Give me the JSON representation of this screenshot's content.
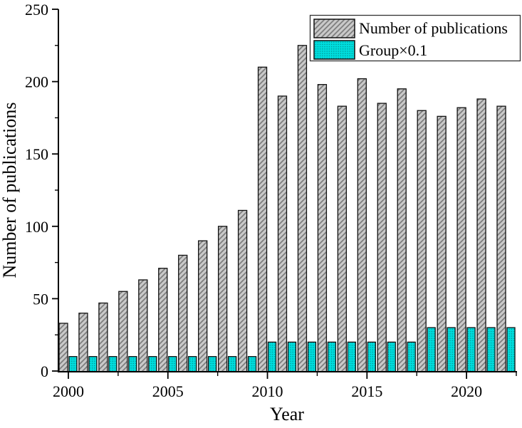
{
  "figure": {
    "background": "#ffffff"
  },
  "chart_data": {
    "type": "bar",
    "title": "",
    "xlabel": "Year",
    "ylabel": "Number of publications",
    "categories": [
      2000,
      2001,
      2002,
      2003,
      2004,
      2005,
      2006,
      2007,
      2008,
      2009,
      2010,
      2011,
      2012,
      2013,
      2014,
      2015,
      2016,
      2017,
      2018,
      2019,
      2020,
      2021,
      2022
    ],
    "series": [
      {
        "name": "Number of publications",
        "values": [
          33,
          40,
          47,
          55,
          63,
          71,
          80,
          90,
          100,
          111,
          210,
          190,
          225,
          198,
          183,
          202,
          185,
          195,
          180,
          176,
          182,
          188,
          183
        ],
        "fill": "#c9c9c9",
        "pattern": "diagonal-hatch",
        "pattern_color": "#7d7d7d",
        "stroke": "#111111"
      },
      {
        "name": "Group×0.1",
        "values": [
          10,
          10,
          10,
          10,
          10,
          10,
          10,
          10,
          10,
          10,
          20,
          20,
          20,
          20,
          20,
          20,
          20,
          20,
          30,
          30,
          30,
          30,
          30
        ],
        "fill": "#00dede",
        "pattern": "dots",
        "pattern_color": "#009a9a",
        "stroke": "#111111"
      }
    ],
    "xlim": [
      1999.5,
      2022.5
    ],
    "ylim": [
      0,
      250
    ],
    "yticks": [
      0,
      50,
      100,
      150,
      200,
      250
    ],
    "yticks_minor": [
      25,
      75,
      125,
      175,
      225
    ],
    "xticks": [
      2000,
      2005,
      2010,
      2015,
      2020
    ],
    "xticks_minor": [
      2002.5,
      2007.5,
      2012.5,
      2017.5,
      2022.5
    ],
    "legend": {
      "position": "top-right",
      "entries": [
        "Number of publications",
        "Group×0.1"
      ]
    },
    "grid": false,
    "axis_color": "#000000"
  }
}
